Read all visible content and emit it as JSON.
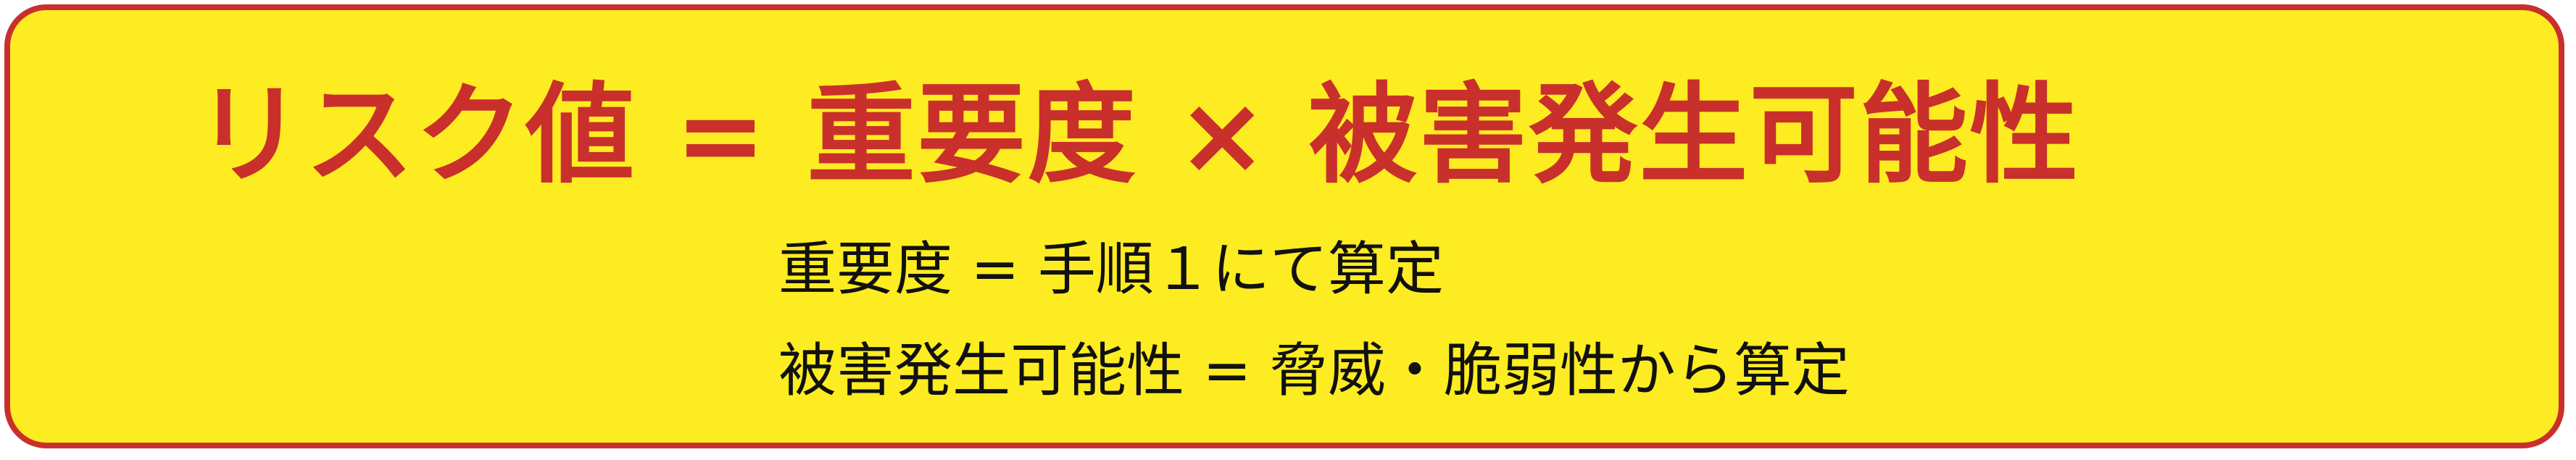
{
  "formula": {
    "text": "リスク値 = 重要度 × 被害発生可能性",
    "color": "#c9302c"
  },
  "definitions": [
    {
      "text": "重要度 = 手順１にて算定"
    },
    {
      "text": "被害発生可能性 = 脅威・脆弱性から算定"
    }
  ],
  "colors": {
    "background": "#fdec21",
    "border": "#c9302c",
    "text": "#111111"
  }
}
